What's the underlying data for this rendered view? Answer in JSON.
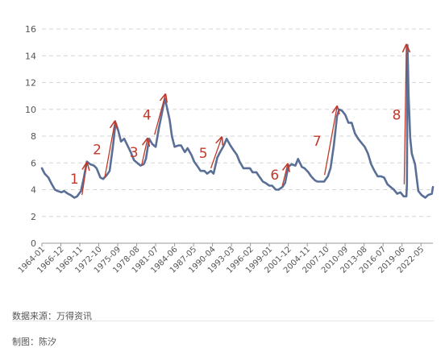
{
  "chart_data": {
    "type": "line",
    "grid": true,
    "ylim": [
      0,
      16
    ],
    "yticks": [
      0,
      2,
      4,
      6,
      8,
      10,
      12,
      14,
      16
    ],
    "xlim": [
      "1964-01",
      "2024-03"
    ],
    "xticks": [
      "1964-01",
      "1966-12",
      "1969-11",
      "1972-10",
      "1975-09",
      "1978-08",
      "1981-07",
      "1984-06",
      "1987-05",
      "1990-04",
      "1993-03",
      "1996-02",
      "1999-01",
      "2001-12",
      "2004-11",
      "2007-10",
      "2010-09",
      "2013-08",
      "2016-07",
      "2019-06",
      "2022-05"
    ],
    "series": [
      {
        "color": "#5a6f96",
        "points": [
          [
            "1964-01",
            5.6
          ],
          [
            "1964-06",
            5.2
          ],
          [
            "1965-01",
            4.9
          ],
          [
            "1965-06",
            4.5
          ],
          [
            "1966-01",
            4.0
          ],
          [
            "1966-06",
            3.9
          ],
          [
            "1967-01",
            3.8
          ],
          [
            "1967-06",
            3.9
          ],
          [
            "1968-01",
            3.7
          ],
          [
            "1968-06",
            3.6
          ],
          [
            "1969-01",
            3.4
          ],
          [
            "1969-06",
            3.5
          ],
          [
            "1970-01",
            3.9
          ],
          [
            "1970-06",
            4.8
          ],
          [
            "1970-12",
            6.1
          ],
          [
            "1971-06",
            5.9
          ],
          [
            "1972-01",
            5.8
          ],
          [
            "1972-06",
            5.6
          ],
          [
            "1973-01",
            4.9
          ],
          [
            "1973-06",
            4.8
          ],
          [
            "1974-01",
            5.1
          ],
          [
            "1974-06",
            5.4
          ],
          [
            "1974-12",
            7.2
          ],
          [
            "1975-05",
            9.0
          ],
          [
            "1975-10",
            8.4
          ],
          [
            "1976-03",
            7.6
          ],
          [
            "1976-09",
            7.8
          ],
          [
            "1977-03",
            7.3
          ],
          [
            "1977-09",
            6.8
          ],
          [
            "1978-03",
            6.2
          ],
          [
            "1978-09",
            6.0
          ],
          [
            "1979-03",
            5.8
          ],
          [
            "1979-09",
            5.9
          ],
          [
            "1980-01",
            6.3
          ],
          [
            "1980-07",
            7.8
          ],
          [
            "1981-01",
            7.4
          ],
          [
            "1981-07",
            7.2
          ],
          [
            "1982-01",
            8.6
          ],
          [
            "1982-06",
            9.6
          ],
          [
            "1982-12",
            10.8
          ],
          [
            "1983-03",
            10.3
          ],
          [
            "1983-09",
            9.2
          ],
          [
            "1984-01",
            8.0
          ],
          [
            "1984-06",
            7.2
          ],
          [
            "1985-01",
            7.3
          ],
          [
            "1985-06",
            7.3
          ],
          [
            "1986-01",
            6.8
          ],
          [
            "1986-06",
            7.1
          ],
          [
            "1987-01",
            6.6
          ],
          [
            "1987-06",
            6.1
          ],
          [
            "1988-01",
            5.7
          ],
          [
            "1988-06",
            5.4
          ],
          [
            "1989-01",
            5.4
          ],
          [
            "1989-06",
            5.2
          ],
          [
            "1990-01",
            5.4
          ],
          [
            "1990-06",
            5.2
          ],
          [
            "1991-01",
            6.4
          ],
          [
            "1991-06",
            6.8
          ],
          [
            "1992-01",
            7.3
          ],
          [
            "1992-06",
            7.8
          ],
          [
            "1993-01",
            7.3
          ],
          [
            "1993-06",
            7.0
          ],
          [
            "1994-01",
            6.6
          ],
          [
            "1994-06",
            6.1
          ],
          [
            "1995-01",
            5.6
          ],
          [
            "1995-06",
            5.6
          ],
          [
            "1996-01",
            5.6
          ],
          [
            "1996-06",
            5.3
          ],
          [
            "1997-01",
            5.3
          ],
          [
            "1997-06",
            5.0
          ],
          [
            "1998-01",
            4.6
          ],
          [
            "1998-06",
            4.5
          ],
          [
            "1999-01",
            4.3
          ],
          [
            "1999-06",
            4.3
          ],
          [
            "2000-01",
            4.0
          ],
          [
            "2000-06",
            4.0
          ],
          [
            "2001-01",
            4.2
          ],
          [
            "2001-06",
            4.5
          ],
          [
            "2001-12",
            5.7
          ],
          [
            "2002-06",
            5.9
          ],
          [
            "2003-01",
            5.8
          ],
          [
            "2003-06",
            6.3
          ],
          [
            "2004-01",
            5.7
          ],
          [
            "2004-06",
            5.6
          ],
          [
            "2005-01",
            5.3
          ],
          [
            "2005-06",
            5.0
          ],
          [
            "2006-01",
            4.7
          ],
          [
            "2006-06",
            4.6
          ],
          [
            "2007-01",
            4.6
          ],
          [
            "2007-06",
            4.6
          ],
          [
            "2008-01",
            5.0
          ],
          [
            "2008-06",
            5.6
          ],
          [
            "2008-12",
            7.3
          ],
          [
            "2009-06",
            9.5
          ],
          [
            "2009-10",
            10.0
          ],
          [
            "2010-03",
            9.9
          ],
          [
            "2010-09",
            9.6
          ],
          [
            "2011-03",
            9.0
          ],
          [
            "2011-09",
            9.0
          ],
          [
            "2012-03",
            8.2
          ],
          [
            "2012-09",
            7.8
          ],
          [
            "2013-03",
            7.5
          ],
          [
            "2013-09",
            7.2
          ],
          [
            "2014-03",
            6.7
          ],
          [
            "2014-09",
            5.9
          ],
          [
            "2015-03",
            5.4
          ],
          [
            "2015-09",
            5.0
          ],
          [
            "2016-03",
            5.0
          ],
          [
            "2016-09",
            4.9
          ],
          [
            "2017-03",
            4.4
          ],
          [
            "2017-09",
            4.2
          ],
          [
            "2018-03",
            4.0
          ],
          [
            "2018-09",
            3.7
          ],
          [
            "2019-03",
            3.8
          ],
          [
            "2019-09",
            3.5
          ],
          [
            "2020-02",
            3.5
          ],
          [
            "2020-03",
            4.4
          ],
          [
            "2020-04",
            14.8
          ],
          [
            "2020-05",
            13.2
          ],
          [
            "2020-06",
            11.1
          ],
          [
            "2020-09",
            7.9
          ],
          [
            "2020-12",
            6.7
          ],
          [
            "2021-06",
            5.9
          ],
          [
            "2021-12",
            3.9
          ],
          [
            "2022-06",
            3.6
          ],
          [
            "2023-01",
            3.4
          ],
          [
            "2023-06",
            3.6
          ],
          [
            "2024-01",
            3.7
          ],
          [
            "2024-03",
            4.2
          ]
        ]
      }
    ],
    "annotations": [
      {
        "label": "1",
        "arrow_from": [
          "1970-03",
          3.6
        ],
        "arrow_to": [
          "1970-12",
          6.0
        ]
      },
      {
        "label": "2",
        "arrow_from": [
          "1973-09",
          4.9
        ],
        "arrow_to": [
          "1975-04",
          9.1
        ]
      },
      {
        "label": "3",
        "arrow_from": [
          "1979-05",
          5.8
        ],
        "arrow_to": [
          "1980-04",
          7.8
        ]
      },
      {
        "label": "4",
        "arrow_from": [
          "1981-05",
          8.1
        ],
        "arrow_to": [
          "1983-01",
          11.1
        ]
      },
      {
        "label": "5",
        "arrow_from": [
          "1990-01",
          5.6
        ],
        "arrow_to": [
          "1991-09",
          7.9
        ]
      },
      {
        "label": "6",
        "arrow_from": [
          "2001-01",
          4.3
        ],
        "arrow_to": [
          "2001-11",
          5.9
        ]
      },
      {
        "label": "7",
        "arrow_from": [
          "2007-07",
          5.1
        ],
        "arrow_to": [
          "2009-06",
          10.2
        ]
      },
      {
        "label": "8",
        "arrow_from": [
          "2019-10",
          4.4
        ],
        "arrow_to": [
          "2020-02",
          14.8
        ]
      }
    ],
    "arrow_color": "#c0392b"
  },
  "footer": {
    "source": "数据来源：万得资讯",
    "author": "制图：陈汐"
  }
}
